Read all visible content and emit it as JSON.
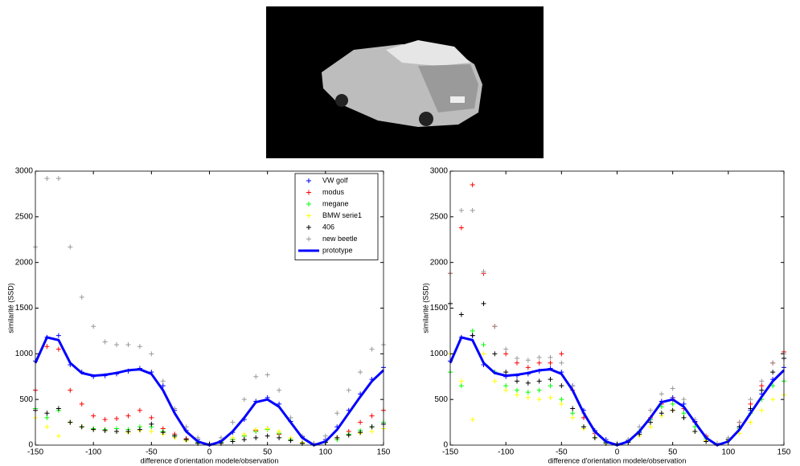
{
  "chart_data": [
    {
      "type": "scatter",
      "xlabel": "difference d'orientation modele/observation",
      "ylabel": "similarité (SSD)",
      "xlim": [
        -150,
        150
      ],
      "ylim": [
        0,
        3000
      ],
      "xticks": [
        -150,
        -100,
        -50,
        0,
        50,
        100,
        150
      ],
      "yticks": [
        0,
        500,
        1000,
        1500,
        2000,
        2500,
        3000
      ],
      "legend": "upper right",
      "grid": false,
      "x": [
        -150,
        -140,
        -130,
        -120,
        -110,
        -100,
        -90,
        -80,
        -70,
        -60,
        -50,
        -40,
        -30,
        -20,
        -10,
        0,
        10,
        20,
        30,
        40,
        50,
        60,
        70,
        80,
        90,
        100,
        110,
        120,
        130,
        140,
        150
      ],
      "series": [
        {
          "name": "VW golf",
          "color": "#0000ff",
          "mode": "markers",
          "values": [
            920,
            1180,
            1200,
            880,
            800,
            750,
            760,
            780,
            810,
            840,
            800,
            650,
            380,
            160,
            60,
            10,
            50,
            140,
            280,
            480,
            520,
            450,
            260,
            90,
            10,
            60,
            200,
            380,
            560,
            720,
            850
          ]
        },
        {
          "name": "modus",
          "color": "#ff0000",
          "mode": "markers",
          "values": [
            600,
            1080,
            1050,
            600,
            450,
            320,
            280,
            290,
            320,
            380,
            300,
            180,
            120,
            70,
            30,
            10,
            30,
            60,
            100,
            160,
            180,
            120,
            60,
            20,
            10,
            30,
            80,
            150,
            250,
            320,
            380
          ]
        },
        {
          "name": "megane",
          "color": "#00ff00",
          "mode": "markers",
          "values": [
            400,
            300,
            380,
            250,
            200,
            180,
            170,
            180,
            170,
            200,
            200,
            150,
            100,
            60,
            30,
            10,
            30,
            60,
            100,
            150,
            170,
            130,
            60,
            20,
            10,
            30,
            60,
            120,
            160,
            200,
            250
          ]
        },
        {
          "name": "BMW serie1",
          "color": "#ffff00",
          "mode": "markers",
          "values": [
            300,
            200,
            100,
            250,
            200,
            170,
            160,
            150,
            140,
            160,
            150,
            120,
            80,
            50,
            20,
            10,
            40,
            80,
            120,
            170,
            180,
            150,
            80,
            30,
            10,
            40,
            80,
            110,
            130,
            150,
            180
          ]
        },
        {
          "name": "406",
          "color": "#000000",
          "mode": "markers",
          "values": [
            380,
            350,
            400,
            250,
            200,
            170,
            160,
            150,
            150,
            170,
            230,
            140,
            100,
            60,
            20,
            10,
            20,
            40,
            60,
            80,
            100,
            80,
            50,
            20,
            10,
            30,
            80,
            110,
            140,
            200,
            230
          ]
        },
        {
          "name": "new beetle",
          "color": "#999999",
          "mode": "markers",
          "values": [
            2170,
            2920,
            2920,
            2170,
            1620,
            1300,
            1130,
            1100,
            1100,
            1080,
            1000,
            700,
            400,
            200,
            80,
            20,
            80,
            250,
            500,
            750,
            770,
            600,
            300,
            100,
            20,
            100,
            350,
            600,
            800,
            1050,
            1100
          ]
        },
        {
          "name": "prototype",
          "color": "#0000ff",
          "mode": "line",
          "values": [
            900,
            1180,
            1150,
            900,
            790,
            760,
            770,
            790,
            820,
            830,
            780,
            600,
            350,
            150,
            40,
            0,
            40,
            150,
            300,
            470,
            500,
            420,
            250,
            80,
            0,
            40,
            170,
            350,
            530,
            700,
            820
          ]
        }
      ]
    },
    {
      "type": "scatter",
      "xlabel": "difference d'orientation modele/observation",
      "ylabel": "similarité (SSD)",
      "xlim": [
        -150,
        150
      ],
      "ylim": [
        0,
        3000
      ],
      "xticks": [
        -150,
        -100,
        -50,
        0,
        50,
        100,
        150
      ],
      "yticks": [
        0,
        500,
        1000,
        1500,
        2000,
        2500,
        3000
      ],
      "grid": false,
      "x": [
        -150,
        -140,
        -130,
        -120,
        -110,
        -100,
        -90,
        -80,
        -70,
        -60,
        -50,
        -40,
        -30,
        -20,
        -10,
        0,
        10,
        20,
        30,
        40,
        50,
        60,
        70,
        80,
        90,
        100,
        110,
        120,
        130,
        140,
        150
      ],
      "series": [
        {
          "color": "#0000ff",
          "mode": "markers",
          "values": [
            920,
            1180,
            1200,
            880,
            800,
            750,
            760,
            780,
            810,
            840,
            800,
            650,
            380,
            160,
            60,
            10,
            50,
            140,
            280,
            480,
            520,
            450,
            260,
            90,
            10,
            60,
            200,
            380,
            560,
            720,
            850
          ]
        },
        {
          "color": "#ff0000",
          "mode": "markers",
          "values": [
            1880,
            2380,
            2850,
            1880,
            1300,
            1000,
            900,
            850,
            900,
            900,
            1000,
            600,
            300,
            130,
            30,
            10,
            40,
            150,
            300,
            450,
            500,
            400,
            250,
            100,
            20,
            60,
            250,
            450,
            650,
            900,
            1020
          ]
        },
        {
          "color": "#00ff00",
          "mode": "markers",
          "values": [
            800,
            650,
            1250,
            1100,
            800,
            650,
            600,
            580,
            600,
            650,
            500,
            350,
            200,
            80,
            30,
            10,
            40,
            150,
            280,
            420,
            450,
            350,
            200,
            70,
            10,
            60,
            180,
            350,
            500,
            650,
            700
          ]
        },
        {
          "color": "#ffff00",
          "mode": "markers",
          "values": [
            1000,
            700,
            280,
            1000,
            700,
            600,
            550,
            520,
            500,
            520,
            450,
            300,
            180,
            80,
            20,
            10,
            30,
            100,
            200,
            320,
            380,
            300,
            150,
            50,
            10,
            50,
            130,
            250,
            380,
            500,
            550
          ]
        },
        {
          "color": "#000000",
          "mode": "markers",
          "values": [
            1550,
            1430,
            1200,
            1550,
            1000,
            800,
            700,
            680,
            700,
            720,
            650,
            400,
            200,
            80,
            20,
            10,
            30,
            120,
            250,
            350,
            380,
            300,
            150,
            40,
            10,
            60,
            200,
            400,
            600,
            800,
            950
          ]
        },
        {
          "color": "#999999",
          "mode": "markers",
          "values": [
            1880,
            2570,
            2570,
            1900,
            1300,
            1050,
            950,
            930,
            960,
            960,
            900,
            650,
            350,
            150,
            40,
            20,
            60,
            200,
            380,
            560,
            620,
            500,
            280,
            90,
            20,
            80,
            250,
            500,
            700,
            900,
            1000
          ]
        },
        {
          "color": "#0000ff",
          "mode": "line",
          "values": [
            900,
            1180,
            1150,
            900,
            790,
            760,
            770,
            790,
            820,
            830,
            780,
            600,
            350,
            150,
            40,
            0,
            40,
            150,
            300,
            470,
            500,
            420,
            250,
            80,
            0,
            40,
            170,
            350,
            530,
            700,
            820
          ]
        }
      ]
    }
  ]
}
